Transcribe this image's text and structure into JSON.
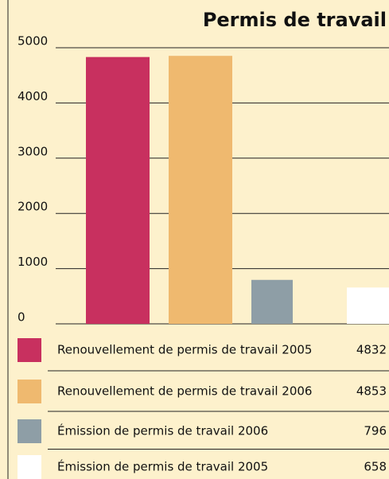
{
  "chart_data": {
    "type": "bar",
    "title": "Permis de travail",
    "categories": [
      "Renouvellement de permis de travail 2005",
      "Renouvellement de permis de travail 2006",
      "Émission de permis de travail 2006",
      "Émission de permis de travail 2005"
    ],
    "values": [
      4832,
      4853,
      796,
      658
    ],
    "colors": [
      "#c8305f",
      "#efb96f",
      "#8e9ea6",
      "#ffffff"
    ],
    "ylim": [
      0,
      5000
    ],
    "yticks": [
      0,
      1000,
      2000,
      3000,
      4000,
      5000
    ],
    "grid": true
  }
}
